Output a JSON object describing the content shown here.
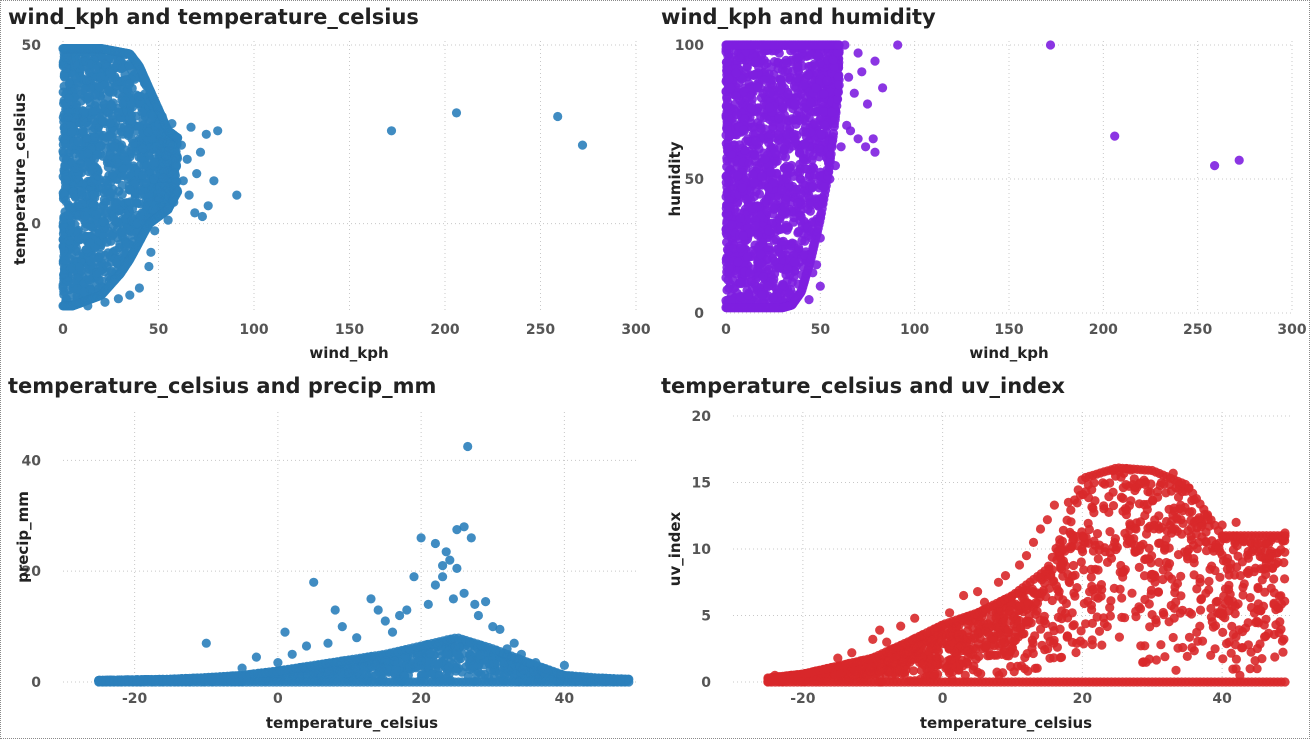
{
  "colors": {
    "blue": "#2b80bb",
    "purple": "#7e1fe0",
    "red": "#d8282a",
    "tick_text": "#555555",
    "title_text": "#222222"
  },
  "chart_data": [
    {
      "type": "scatter",
      "title": "wind_kph and temperature_celsius",
      "xlabel": "wind_kph",
      "ylabel": "temperature_celsius",
      "xlim": [
        0,
        300
      ],
      "ylim": [
        -25,
        50
      ],
      "xticks": [
        0,
        50,
        100,
        150,
        200,
        250,
        300
      ],
      "yticks": [
        0,
        50
      ],
      "grid": true,
      "color": "#2b80bb",
      "density": {
        "x": [
          0,
          5,
          10,
          15,
          20,
          25,
          30,
          35,
          40,
          45,
          50,
          55,
          60
        ],
        "ymin": [
          -23,
          -23,
          -22,
          -21,
          -20,
          -17,
          -14,
          -10,
          -5,
          0,
          2,
          4,
          9
        ],
        "ymax": [
          49,
          49,
          49,
          49,
          49,
          48.5,
          48,
          47.5,
          44,
          38,
          32,
          26,
          24
        ]
      },
      "outliers": [
        [
          62,
          22
        ],
        [
          65,
          18
        ],
        [
          67,
          27
        ],
        [
          70,
          14
        ],
        [
          72,
          20
        ],
        [
          75,
          25
        ],
        [
          79,
          12
        ],
        [
          81,
          26
        ],
        [
          91,
          8
        ],
        [
          57,
          28
        ],
        [
          60,
          24
        ],
        [
          63,
          12
        ],
        [
          66,
          8
        ],
        [
          55,
          4
        ],
        [
          58,
          6
        ],
        [
          52,
          30
        ],
        [
          54,
          19
        ],
        [
          69,
          3
        ],
        [
          55,
          1
        ],
        [
          73,
          2
        ],
        [
          76,
          5
        ],
        [
          45,
          -12
        ],
        [
          40,
          -18
        ],
        [
          35,
          -20
        ],
        [
          29,
          -21
        ],
        [
          22,
          -22
        ],
        [
          46,
          -8
        ],
        [
          48,
          -2
        ],
        [
          13,
          -23
        ],
        [
          5,
          -23
        ],
        [
          7,
          -22
        ],
        [
          172,
          26
        ],
        [
          206,
          31
        ],
        [
          259,
          30
        ],
        [
          272,
          22
        ]
      ]
    },
    {
      "type": "scatter",
      "title": "wind_kph and humidity",
      "xlabel": "wind_kph",
      "ylabel": "humidity",
      "xlim": [
        0,
        300
      ],
      "ylim": [
        0,
        100
      ],
      "xticks": [
        0,
        50,
        100,
        150,
        200,
        250,
        300
      ],
      "yticks": [
        0,
        50,
        100
      ],
      "grid": true,
      "color": "#7e1fe0",
      "density": {
        "x": [
          0,
          5,
          10,
          15,
          20,
          25,
          30,
          35,
          40,
          45,
          50,
          55,
          60
        ],
        "ymin": [
          2,
          2,
          2,
          2,
          2,
          2,
          2,
          3,
          8,
          20,
          35,
          55,
          85
        ],
        "ymax": [
          100,
          100,
          100,
          100,
          100,
          100,
          100,
          100,
          100,
          100,
          100,
          100,
          100
        ]
      },
      "outliers": [
        [
          63,
          100
        ],
        [
          91,
          100
        ],
        [
          65,
          88
        ],
        [
          68,
          82
        ],
        [
          70,
          97
        ],
        [
          72,
          90
        ],
        [
          75,
          78
        ],
        [
          79,
          94
        ],
        [
          83,
          84
        ],
        [
          61,
          62
        ],
        [
          64,
          70
        ],
        [
          66,
          68
        ],
        [
          70,
          65
        ],
        [
          74,
          62
        ],
        [
          78,
          65
        ],
        [
          79,
          60
        ],
        [
          56,
          75
        ],
        [
          58,
          55
        ],
        [
          55,
          50
        ],
        [
          52,
          47
        ],
        [
          50,
          28
        ],
        [
          48,
          18
        ],
        [
          50,
          10
        ],
        [
          46,
          15
        ],
        [
          44,
          5
        ],
        [
          172,
          100
        ],
        [
          206,
          66
        ],
        [
          259,
          55
        ],
        [
          272,
          57
        ]
      ]
    },
    {
      "type": "scatter",
      "title": "temperature_celsius and precip_mm",
      "xlabel": "temperature_celsius",
      "ylabel": "precip_mm",
      "xlim": [
        -30,
        50
      ],
      "ylim": [
        0,
        48
      ],
      "xticks": [
        -20,
        0,
        20,
        40
      ],
      "yticks": [
        0,
        20,
        40
      ],
      "grid": true,
      "color": "#2b80bb",
      "density": {
        "x": [
          -25,
          -20,
          -15,
          -10,
          -5,
          0,
          5,
          10,
          15,
          20,
          25,
          30,
          35,
          40,
          45,
          49
        ],
        "ymin": [
          0,
          0,
          0,
          0,
          0,
          0,
          0,
          0,
          0,
          0,
          0,
          0,
          0,
          0,
          0,
          0
        ],
        "ymax": [
          0.3,
          0.4,
          0.5,
          0.8,
          1.2,
          2.0,
          3.0,
          4.0,
          5.0,
          6.5,
          8.0,
          6.0,
          3.5,
          1.2,
          0.7,
          0.5
        ]
      },
      "outliers": [
        [
          -10,
          7
        ],
        [
          -5,
          2.5
        ],
        [
          -3,
          4.5
        ],
        [
          0,
          3.5
        ],
        [
          1,
          9
        ],
        [
          2,
          5
        ],
        [
          4,
          6.5
        ],
        [
          5,
          18
        ],
        [
          7,
          7
        ],
        [
          8,
          13
        ],
        [
          9,
          10
        ],
        [
          11,
          8
        ],
        [
          13,
          15
        ],
        [
          14,
          13
        ],
        [
          15,
          11
        ],
        [
          16,
          9
        ],
        [
          17,
          12
        ],
        [
          18,
          13
        ],
        [
          19,
          19
        ],
        [
          20,
          26
        ],
        [
          21,
          14
        ],
        [
          22,
          25
        ],
        [
          22,
          17.5
        ],
        [
          23,
          21
        ],
        [
          23,
          19
        ],
        [
          23.5,
          23.5
        ],
        [
          24,
          22
        ],
        [
          24.5,
          15
        ],
        [
          25,
          20.5
        ],
        [
          25,
          27.5
        ],
        [
          26,
          16
        ],
        [
          26.5,
          42.5
        ],
        [
          26,
          28
        ],
        [
          27,
          26
        ],
        [
          27.5,
          14
        ],
        [
          28,
          12
        ],
        [
          29,
          14.5
        ],
        [
          30,
          10
        ],
        [
          31,
          9.5
        ],
        [
          32,
          6
        ],
        [
          33,
          7
        ],
        [
          34,
          5
        ],
        [
          36,
          3.5
        ],
        [
          40,
          3
        ]
      ]
    },
    {
      "type": "scatter",
      "title": "temperature_celsius and uv_index",
      "xlabel": "temperature_celsius",
      "ylabel": "uv_index",
      "xlim": [
        -30,
        50
      ],
      "ylim": [
        0,
        20
      ],
      "xticks": [
        -20,
        0,
        20,
        40
      ],
      "yticks": [
        0,
        5,
        10,
        15,
        20
      ],
      "grid": true,
      "color": "#d8282a",
      "density": {
        "x": [
          -25,
          -20,
          -15,
          -10,
          -5,
          0,
          5,
          10,
          15,
          17,
          20,
          25,
          30,
          35,
          38,
          40,
          45,
          49
        ],
        "ymin": [
          0,
          0,
          0,
          0,
          0,
          0,
          0,
          0,
          0,
          0,
          0,
          0,
          0,
          0,
          0,
          0,
          0,
          0
        ],
        "ymax": [
          0.3,
          0.6,
          1.2,
          1.8,
          3.0,
          4.3,
          5.2,
          6.5,
          8.5,
          11,
          15.3,
          16.1,
          15.9,
          14.8,
          12.5,
          11,
          11,
          11
        ]
      },
      "outliers": [
        [
          -24,
          0.5
        ],
        [
          -15,
          1.8
        ],
        [
          -13,
          2.2
        ],
        [
          -10,
          3.2
        ],
        [
          -9,
          3.9
        ],
        [
          -8,
          3.0
        ],
        [
          -6,
          4.2
        ],
        [
          -4,
          4.8
        ],
        [
          -3,
          3.5
        ],
        [
          1,
          5.2
        ],
        [
          3,
          6.5
        ],
        [
          5,
          6.8
        ],
        [
          6,
          6.0
        ],
        [
          8,
          7.5
        ],
        [
          9,
          8.0
        ],
        [
          11,
          8.8
        ],
        [
          12,
          9.5
        ],
        [
          13,
          10.5
        ],
        [
          14,
          11.5
        ],
        [
          15,
          12.2
        ],
        [
          16,
          13.3
        ],
        [
          18,
          13.5
        ],
        [
          33,
          15.7
        ],
        [
          38,
          12.2
        ],
        [
          40,
          11.8
        ],
        [
          42,
          12.0
        ],
        [
          46,
          8.5
        ],
        [
          48,
          9.0
        ],
        [
          49,
          11.2
        ],
        [
          40,
          5.5
        ],
        [
          41,
          3.0
        ],
        [
          42,
          1.0
        ],
        [
          44,
          1.0
        ],
        [
          45,
          1.0
        ],
        [
          39,
          2.5
        ]
      ]
    }
  ]
}
